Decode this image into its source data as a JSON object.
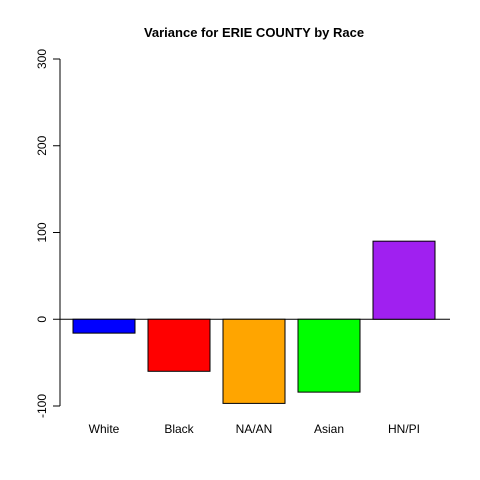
{
  "chart_data": {
    "type": "bar",
    "title": "Variance for ERIE COUNTY by Race",
    "xlabel": "",
    "ylabel": "",
    "categories": [
      "White",
      "Black",
      "NA/AN",
      "Asian",
      "HN/PI"
    ],
    "values": [
      -16,
      -60,
      -97,
      -84,
      90
    ],
    "colors": [
      "#0000ff",
      "#ff0000",
      "#ffa500",
      "#00ff00",
      "#a020f0"
    ],
    "ylim": [
      -100,
      300
    ],
    "yticks": [
      -100,
      0,
      100,
      200,
      300
    ],
    "grid": false,
    "baseline": 0
  }
}
